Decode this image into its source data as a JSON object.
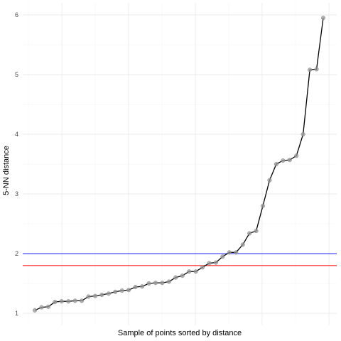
{
  "chart_data": {
    "type": "line",
    "title": "",
    "xlabel": "Sample of points sorted by distance",
    "ylabel": "5-NN distance",
    "ylim": [
      0.9,
      6.2
    ],
    "y_ticks": [
      1,
      2,
      3,
      4,
      5,
      6
    ],
    "x_tick_labels": "none",
    "grid": true,
    "background": "white",
    "series": [
      {
        "color": "#000000",
        "point_color": "#999999",
        "markers": true,
        "values": [
          1.05,
          1.1,
          1.11,
          1.19,
          1.2,
          1.2,
          1.21,
          1.21,
          1.28,
          1.29,
          1.31,
          1.33,
          1.36,
          1.38,
          1.39,
          1.44,
          1.45,
          1.5,
          1.51,
          1.51,
          1.53,
          1.6,
          1.63,
          1.7,
          1.7,
          1.77,
          1.84,
          1.85,
          1.95,
          2.02,
          2.02,
          2.15,
          2.34,
          2.38,
          2.8,
          3.23,
          3.5,
          3.56,
          3.57,
          3.64,
          4.0,
          5.08,
          5.09,
          5.95
        ]
      }
    ],
    "reference_lines": [
      {
        "y": 2.0,
        "color": "#0000ff"
      },
      {
        "y": 1.8,
        "color": "#ff0000"
      }
    ]
  }
}
